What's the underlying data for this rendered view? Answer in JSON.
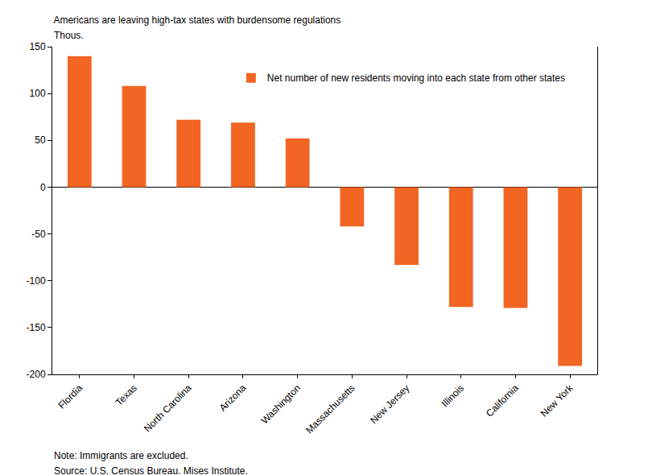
{
  "chart_data": {
    "type": "bar",
    "title": "Americans are leaving high-tax states with burdensome regulations",
    "y_label": "Thous.",
    "categories": [
      "Flordia",
      "Texas",
      "North Carolina",
      "Arizona",
      "Washington",
      "Massachusetts",
      "New Jersey",
      "Illinois",
      "California",
      "New York"
    ],
    "series": [
      {
        "name": "Net number of new residents moving into each state from other states",
        "color": "#f26522",
        "values": [
          140,
          108,
          72,
          69,
          52,
          -42,
          -83,
          -128,
          -129,
          -191
        ]
      }
    ],
    "ylim": [
      -200,
      150
    ],
    "yticks": [
      -200,
      -150,
      -100,
      -50,
      0,
      50,
      100,
      150
    ],
    "grid": false,
    "legend": "top",
    "annotations": [
      "Note: Immigrants are excluded.",
      "Source: U.S. Census Bureau. Mises Institute."
    ]
  }
}
